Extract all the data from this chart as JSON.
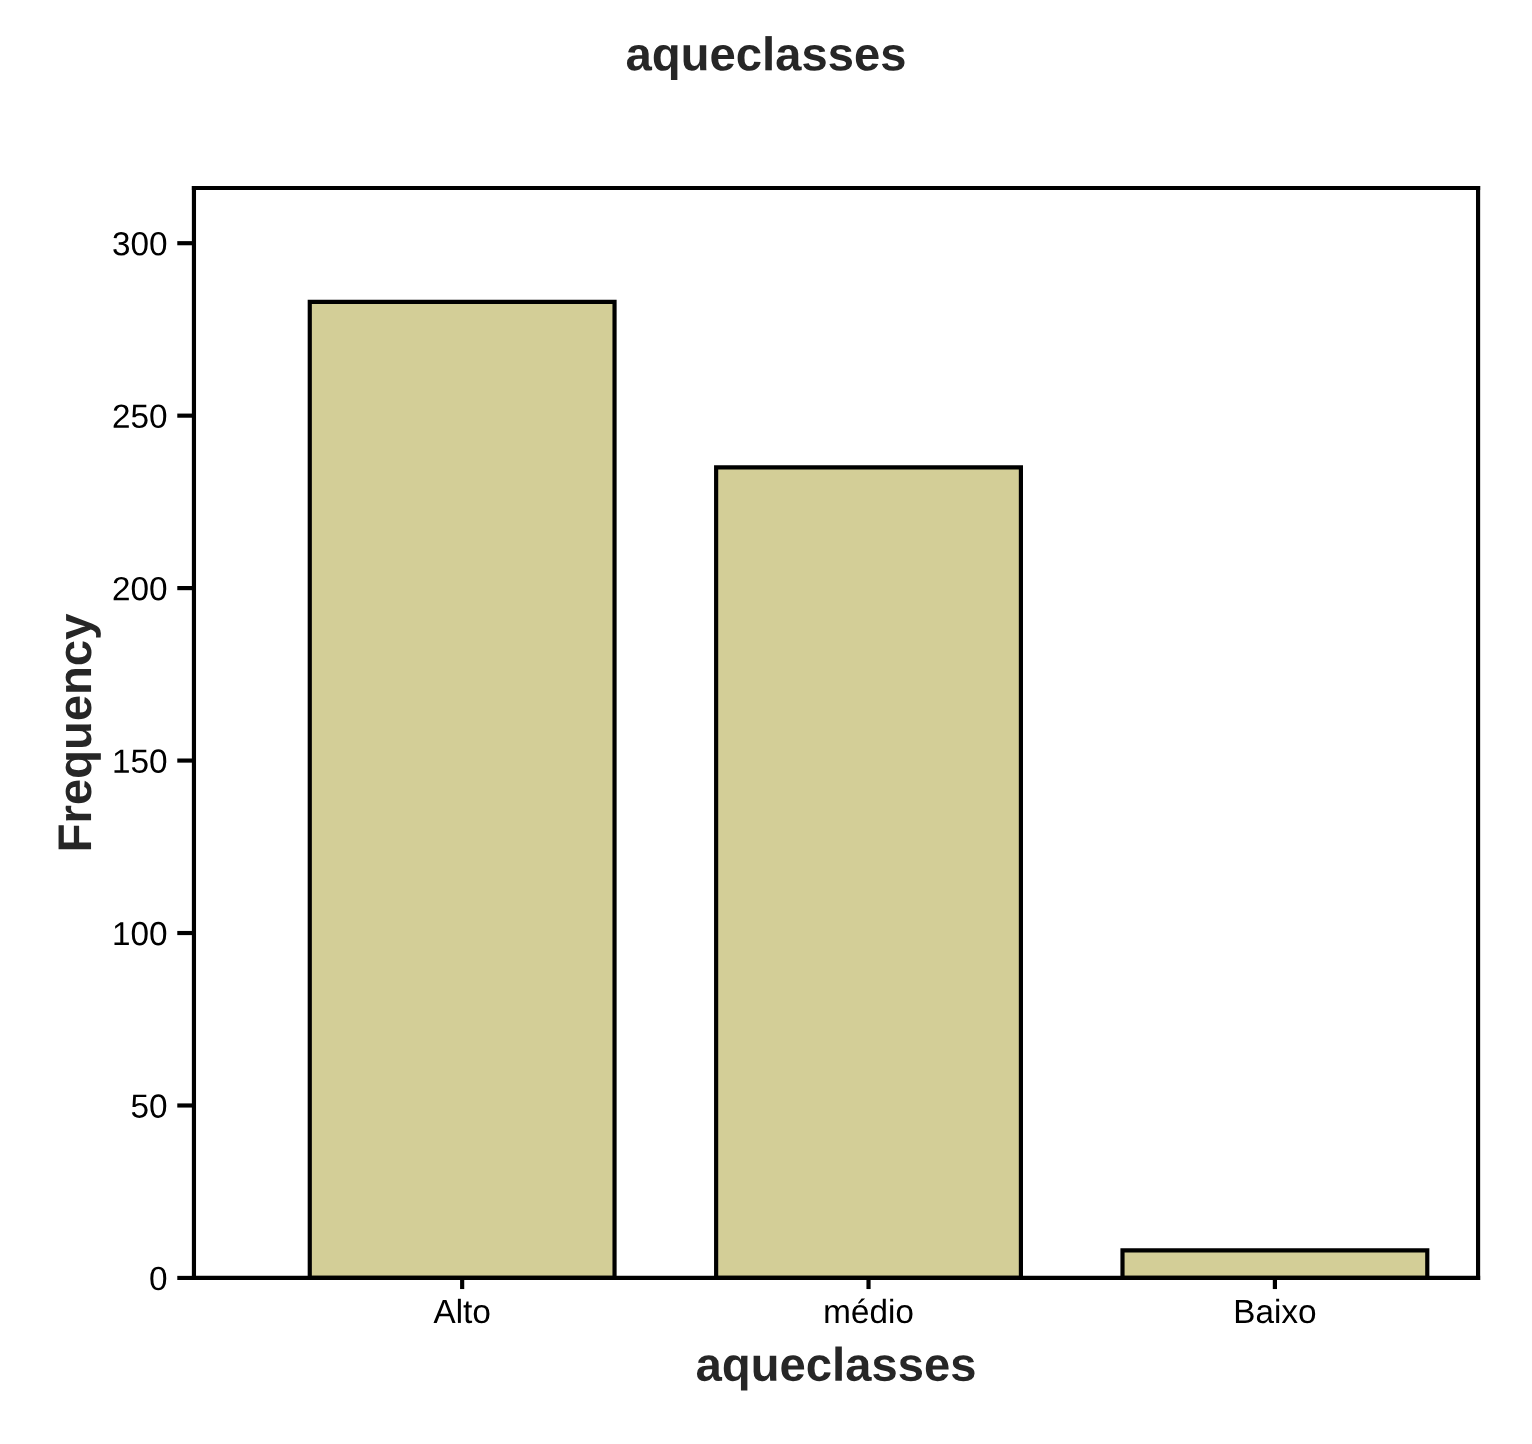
{
  "chart_data": {
    "type": "bar",
    "title": "aqueclasses",
    "xlabel": "aqueclasses",
    "ylabel": "Frequency",
    "categories": [
      "Alto",
      "médio",
      "Baixo"
    ],
    "values": [
      283,
      235,
      8
    ],
    "color": "#d3ce97",
    "ylim": [
      0,
      316
    ],
    "yticks": [
      0,
      50,
      100,
      150,
      200,
      250,
      300
    ],
    "grid": false
  }
}
